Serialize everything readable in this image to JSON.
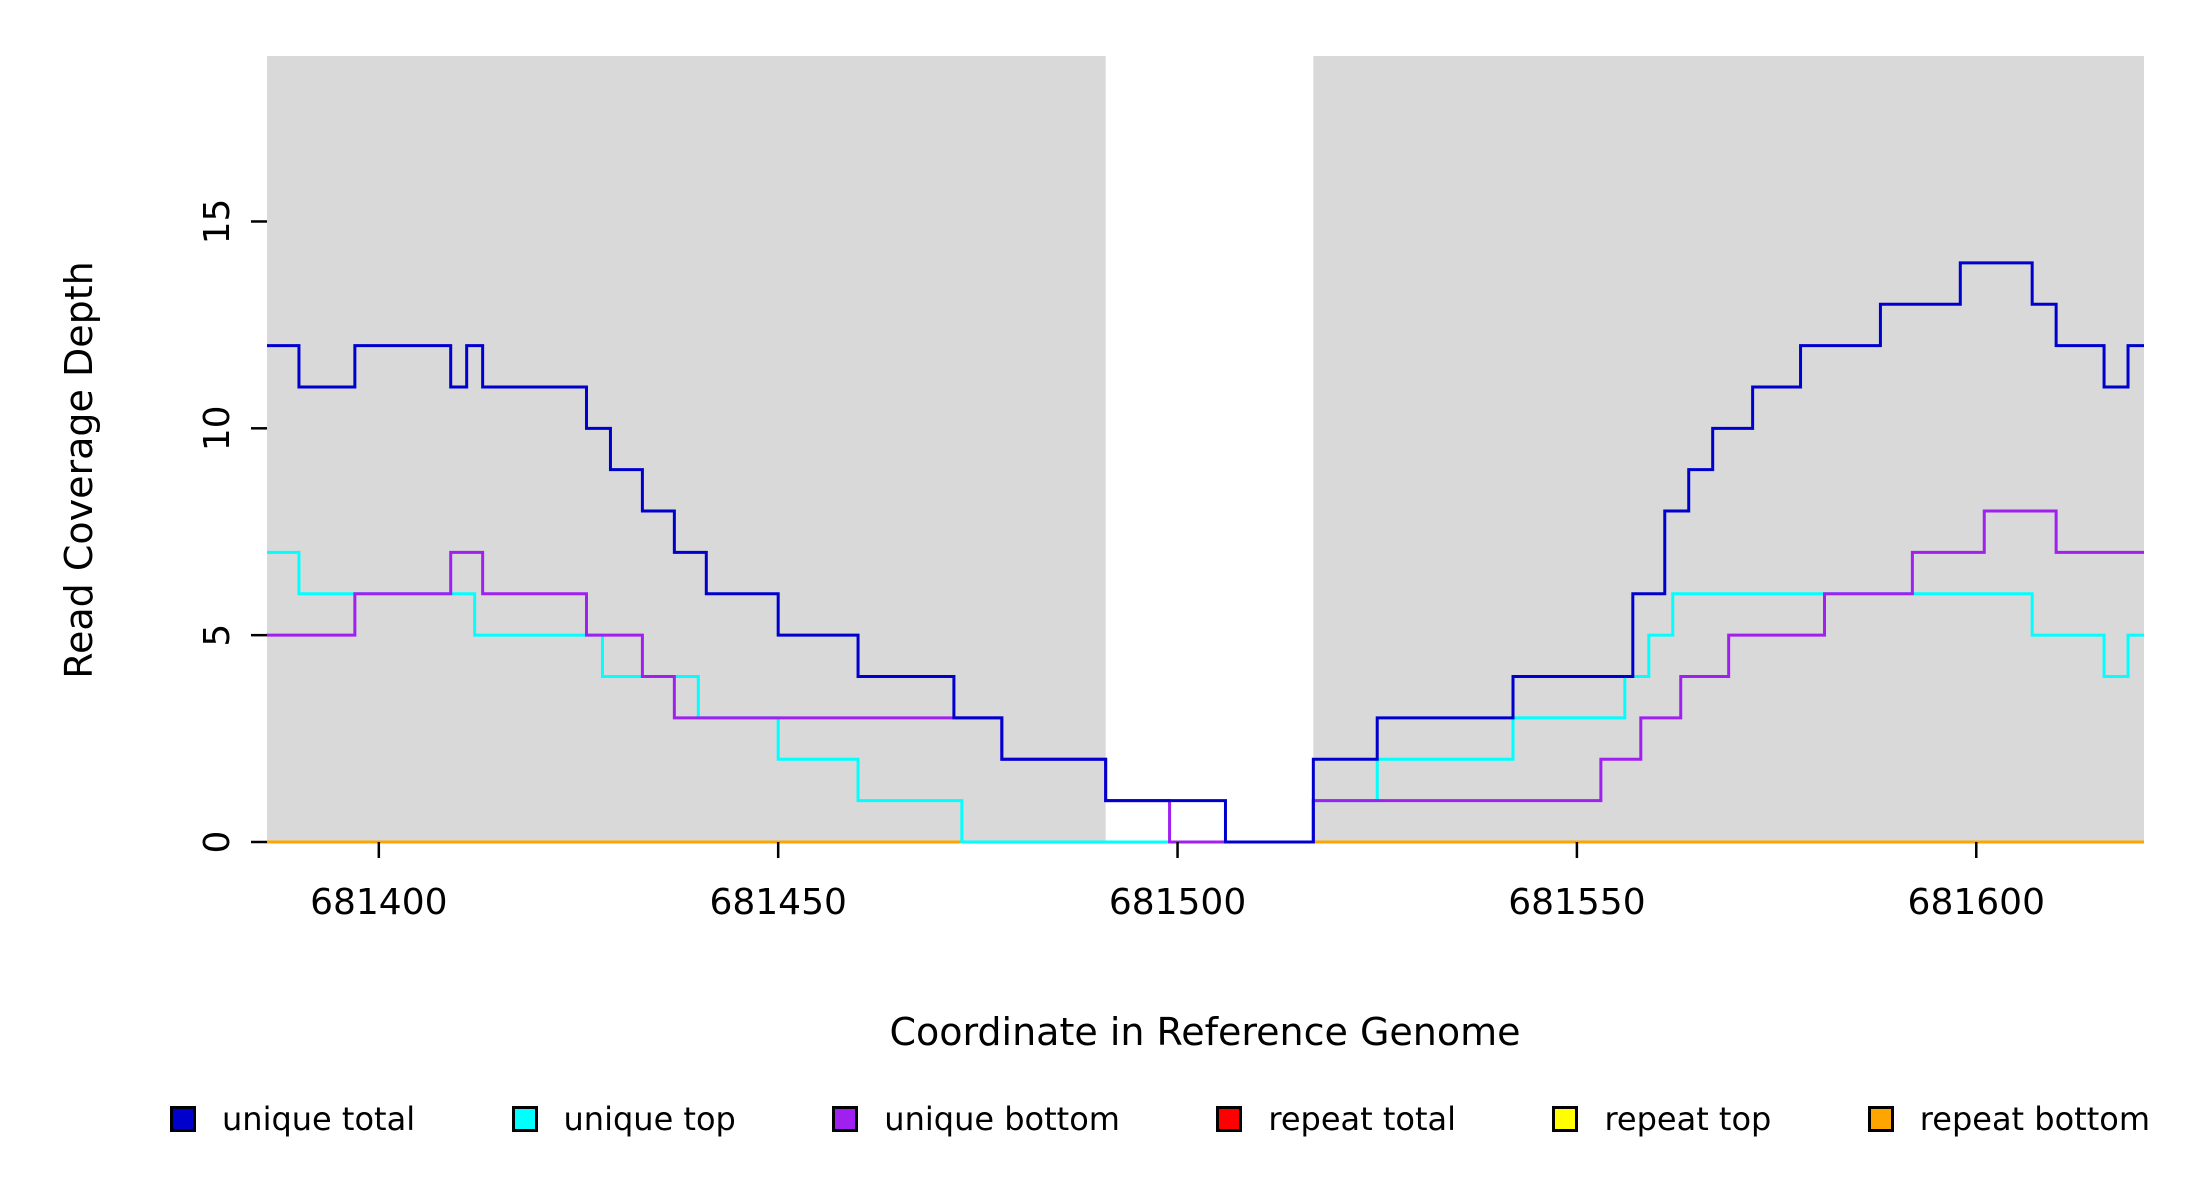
{
  "chart_data": {
    "type": "line",
    "subtype": "step",
    "title": "",
    "xlabel": "Coordinate in Reference Genome",
    "ylabel": "Read Coverage Depth",
    "xlim": [
      681386,
      681621
    ],
    "ylim": [
      0,
      19
    ],
    "x_ticks": [
      681400,
      681450,
      681500,
      681550,
      681600
    ],
    "y_ticks": [
      0,
      5,
      10,
      15
    ],
    "grid": "off",
    "legend_position": "bottom",
    "plot_background": "#ffffff",
    "shaded_regions": [
      {
        "x0": 681386,
        "x1": 681491,
        "color": "#d9d9d9"
      },
      {
        "x0": 681517,
        "x1": 681621,
        "color": "#d9d9d9"
      }
    ],
    "draw_order": [
      "repeat total",
      "repeat top",
      "repeat bottom",
      "unique top",
      "unique bottom",
      "unique total"
    ],
    "series": [
      {
        "name": "unique total",
        "color": "#0000cd",
        "points": [
          [
            681386,
            12
          ],
          [
            681390,
            11
          ],
          [
            681397,
            12
          ],
          [
            681409,
            11
          ],
          [
            681411,
            12
          ],
          [
            681413,
            11
          ],
          [
            681426,
            10
          ],
          [
            681429,
            9
          ],
          [
            681433,
            8
          ],
          [
            681437,
            7
          ],
          [
            681441,
            6
          ],
          [
            681450,
            5
          ],
          [
            681460,
            4
          ],
          [
            681472,
            3
          ],
          [
            681478,
            2
          ],
          [
            681491,
            1
          ],
          [
            681506,
            0
          ],
          [
            681517,
            2
          ],
          [
            681525,
            3
          ],
          [
            681542,
            4
          ],
          [
            681557,
            6
          ],
          [
            681561,
            8
          ],
          [
            681564,
            9
          ],
          [
            681567,
            10
          ],
          [
            681572,
            11
          ],
          [
            681578,
            12
          ],
          [
            681588,
            13
          ],
          [
            681598,
            14
          ],
          [
            681607,
            13
          ],
          [
            681610,
            12
          ],
          [
            681616,
            11
          ],
          [
            681619,
            12
          ]
        ]
      },
      {
        "name": "unique top",
        "color": "#00ffff",
        "points": [
          [
            681386,
            7
          ],
          [
            681390,
            6
          ],
          [
            681412,
            5
          ],
          [
            681428,
            4
          ],
          [
            681440,
            3
          ],
          [
            681450,
            2
          ],
          [
            681460,
            1
          ],
          [
            681473,
            0
          ],
          [
            681517,
            1
          ],
          [
            681525,
            2
          ],
          [
            681542,
            3
          ],
          [
            681556,
            4
          ],
          [
            681559,
            5
          ],
          [
            681562,
            6
          ],
          [
            681607,
            5
          ],
          [
            681616,
            4
          ],
          [
            681619,
            5
          ]
        ]
      },
      {
        "name": "unique bottom",
        "color": "#a020f0",
        "points": [
          [
            681386,
            5
          ],
          [
            681397,
            6
          ],
          [
            681409,
            7
          ],
          [
            681413,
            6
          ],
          [
            681426,
            5
          ],
          [
            681433,
            4
          ],
          [
            681437,
            3
          ],
          [
            681478,
            2
          ],
          [
            681491,
            1
          ],
          [
            681499,
            0
          ],
          [
            681517,
            1
          ],
          [
            681553,
            2
          ],
          [
            681558,
            3
          ],
          [
            681563,
            4
          ],
          [
            681569,
            5
          ],
          [
            681581,
            6
          ],
          [
            681592,
            7
          ],
          [
            681601,
            8
          ],
          [
            681610,
            7
          ]
        ]
      },
      {
        "name": "repeat total",
        "color": "#ff0000",
        "points": [
          [
            681386,
            0
          ]
        ]
      },
      {
        "name": "repeat top",
        "color": "#ffff00",
        "points": [
          [
            681386,
            0
          ]
        ]
      },
      {
        "name": "repeat bottom",
        "color": "#ffa500",
        "points": [
          [
            681386,
            0
          ]
        ]
      }
    ]
  }
}
